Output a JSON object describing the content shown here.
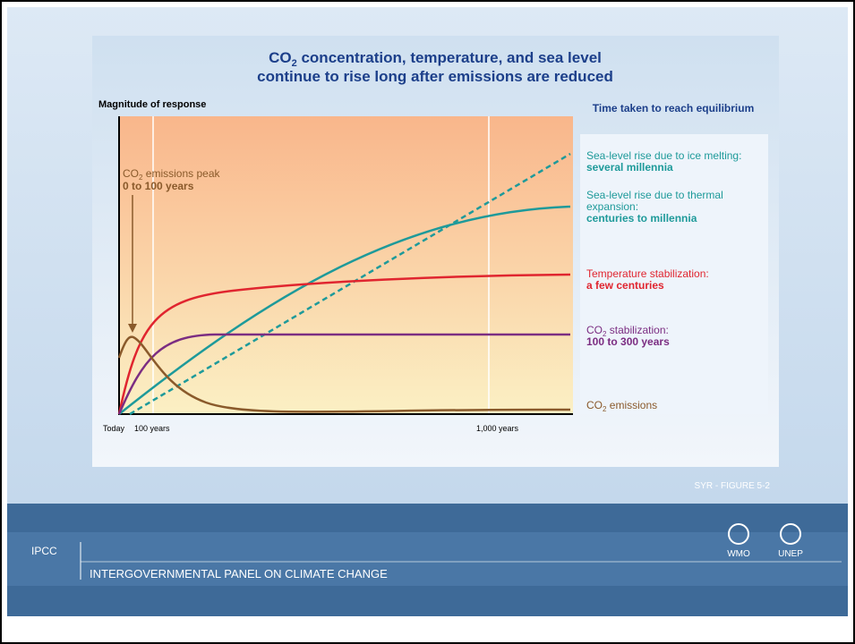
{
  "slide": {
    "title": {
      "line1": {
        "a": "CO",
        "sub": "2",
        "b": " concentration, temperature, and sea level"
      },
      "line2": "continue to rise long after emissions are reduced"
    },
    "y_axis_label": "Magnitude of response",
    "x_labels": [
      "Today",
      "100 years",
      "1,000 years"
    ],
    "legend_title": "Time taken to reach equilibrium",
    "annotation": {
      "a": "CO",
      "sub": "2",
      "b": " emissions peak",
      "detail": "0 to 100 years"
    },
    "labels": [
      {
        "lines": [
          "Sea-level rise due to ice melting:"
        ],
        "detail": "several millennia"
      },
      {
        "lines": [
          "Sea-level rise due to thermal",
          "expansion:"
        ],
        "detail": "centuries to millennia"
      },
      {
        "lines": [
          "Temperature stabilization:"
        ],
        "detail": "a few centuries"
      },
      {
        "a": "CO",
        "sub": "2",
        "b": " stabilization:",
        "detail": "100 to 300 years"
      },
      {
        "a": "CO",
        "sub": "2",
        "b": " emissions"
      }
    ],
    "source": "SYR - FIGURE 5-2",
    "footer": {
      "org": "IPCC",
      "name": "INTERGOVERNMENTAL PANEL ON CLIMATE CHANGE",
      "logos": [
        "WMO",
        "UNEP"
      ]
    }
  }
}
